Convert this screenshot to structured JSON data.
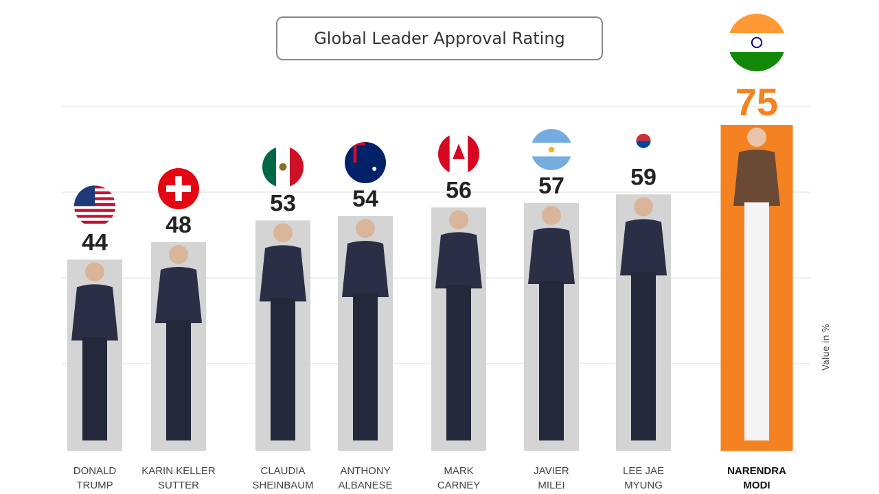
{
  "chart_data": {
    "type": "bar",
    "title": "Global Leader Approval Rating",
    "ylabel": "Value in %",
    "ylim": [
      0,
      75
    ],
    "grid": true,
    "categories": [
      "DONALD TRUMP",
      "KARIN KELLER SUTTER",
      "CLAUDIA SHEINBAUM",
      "ANTHONY ALBANESE",
      "MARK CARNEY",
      "JAVIER MILEI",
      "LEE JAE MYUNG",
      "NARENDRA MODI"
    ],
    "values": [
      44,
      48,
      53,
      54,
      56,
      57,
      59,
      75
    ],
    "flags": [
      "usa-flag-icon",
      "switzerland-flag-icon",
      "mexico-flag-icon",
      "australia-flag-icon",
      "canada-flag-icon",
      "argentina-flag-icon",
      "south-korea-flag-icon",
      "india-flag-icon"
    ],
    "colors": {
      "bar": "#d4d4d4",
      "highlight_bar": "#f58220",
      "highlight_value": "#f58220",
      "value": "#222222"
    },
    "highlight": "NARENDRA MODI"
  }
}
